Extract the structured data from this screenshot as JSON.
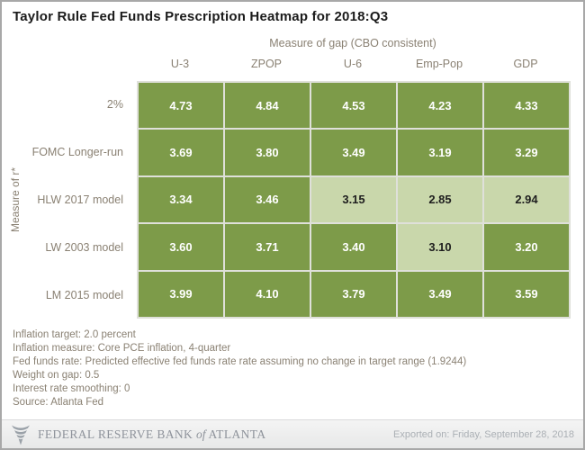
{
  "chart_data": {
    "type": "heatmap",
    "title": "Taylor Rule Fed Funds Prescription Heatmap for 2018:Q3",
    "xlabel": "Measure of gap (CBO consistent)",
    "ylabel": "Measure of r*",
    "columns": [
      "U-3",
      "ZPOP",
      "U-6",
      "Emp-Pop",
      "GDP"
    ],
    "rows": [
      "2%",
      "FOMC Longer-run",
      "HLW 2017 model",
      "LW 2003 model",
      "LM 2015 model"
    ],
    "values": [
      [
        4.73,
        4.84,
        4.53,
        4.23,
        4.33
      ],
      [
        3.69,
        3.8,
        3.49,
        3.19,
        3.29
      ],
      [
        3.34,
        3.46,
        3.15,
        2.85,
        2.94
      ],
      [
        3.6,
        3.71,
        3.4,
        3.1,
        3.2
      ],
      [
        3.99,
        4.1,
        3.79,
        3.49,
        3.59
      ]
    ],
    "light_cells": [
      [
        2,
        2
      ],
      [
        2,
        3
      ],
      [
        2,
        4
      ],
      [
        3,
        3
      ]
    ],
    "colors": {
      "dark_cell": "#7d9b49",
      "light_cell": "#c9d7ab",
      "dark_cell_text": "#ffffff",
      "light_cell_text": "#1e1e1e"
    },
    "legend_position": "none",
    "grid": false
  },
  "notes": [
    "Inflation target: 2.0 percent",
    "Inflation measure: Core PCE inflation, 4-quarter",
    "Fed funds rate: Predicted effective fed funds rate rate assuming no change in target range (1.9244)",
    "Weight on gap: 0.5",
    "Interest rate smoothing: 0",
    "Source: Atlanta Fed"
  ],
  "footer": {
    "brand_prefix": "FEDERAL RESERVE BANK",
    "brand_of": "of",
    "brand_suffix": "ATLANTA",
    "exported_on": "Exported on: Friday, September 28, 2018"
  }
}
